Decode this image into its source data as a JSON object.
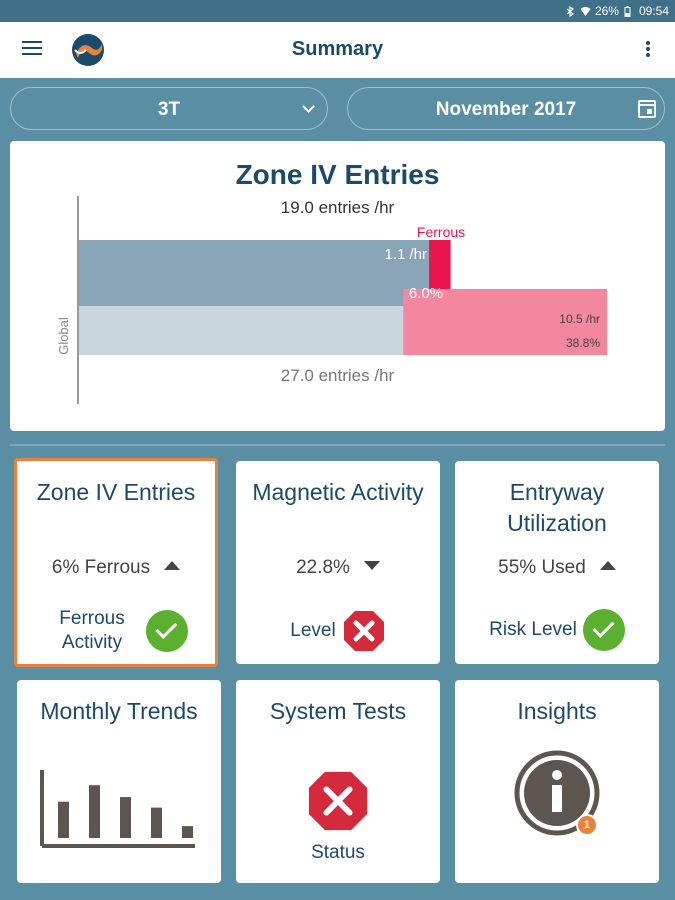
{
  "statusbar": {
    "battery": "26%",
    "time": "09:54"
  },
  "appbar": {
    "title": "Summary"
  },
  "filters": {
    "scanner": "3T",
    "period": "November 2017"
  },
  "chart_data": {
    "type": "bar",
    "title": "Zone IV Entries",
    "subtitle": "19.0 entries /hr",
    "ylabel": "Global",
    "bottom_label": "27.0 entries /hr",
    "series_label": "Ferrous",
    "series": [
      {
        "total_label": "19.0 entries /hr",
        "total": 19.0,
        "ferrous": 1.1,
        "ferrous_label": "1.1 /hr",
        "percent": 6.0,
        "percent_label": "6.0%"
      },
      {
        "total_label": "27.0 entries /hr",
        "total": 27.0,
        "ferrous": 10.5,
        "ferrous_label": "10.5 /hr",
        "percent": 38.8,
        "percent_label": "38.8%"
      }
    ],
    "colors": {
      "local": "#8aa4b8",
      "global": "#c9d6de",
      "ferrous_local": "#e8164d",
      "ferrous_global": "#f2879f"
    }
  },
  "cards": [
    {
      "title": "Zone IV Entries",
      "metric": "6% Ferrous",
      "trend": "up",
      "status_label": "Ferrous Activity",
      "status": "ok"
    },
    {
      "title": "Magnetic Activity",
      "metric": "22.8%",
      "trend": "down",
      "status_label": "Level",
      "status": "error"
    },
    {
      "title": "Entryway Utilization",
      "metric": "55% Used",
      "trend": "up",
      "status_label": "Risk Level",
      "status": "ok"
    },
    {
      "title": "Monthly Trends",
      "bars": [
        0.55,
        0.8,
        0.62,
        0.46,
        0.18
      ]
    },
    {
      "title": "System Tests",
      "status_label": "Status",
      "status": "error"
    },
    {
      "title": "Insights",
      "badge": "1"
    }
  ]
}
